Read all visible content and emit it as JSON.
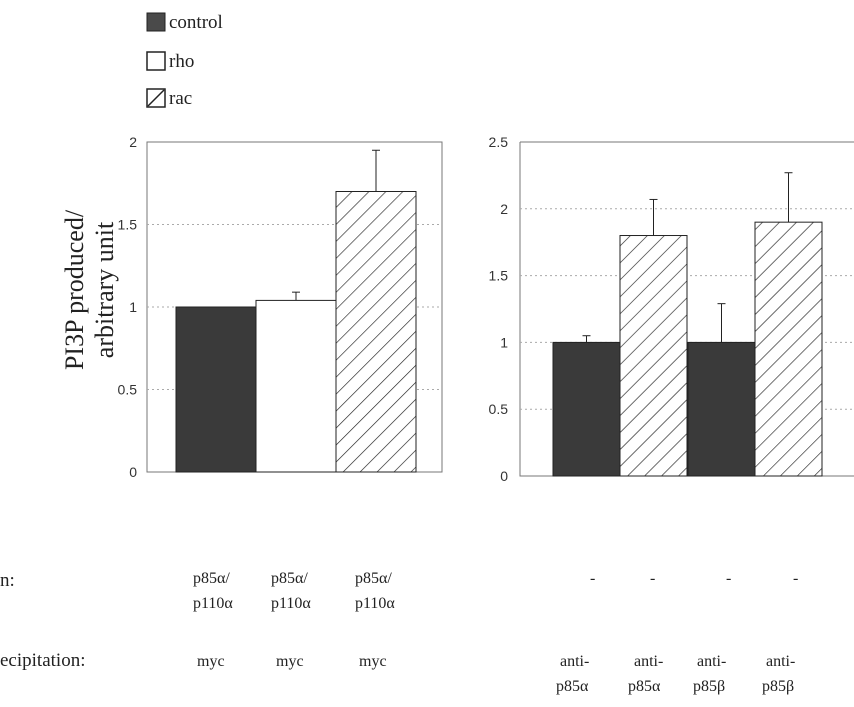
{
  "chart_data": [
    {
      "type": "bar",
      "ylabel_lines": [
        "PI3P produced/",
        "arbitrary unit"
      ],
      "ylim": [
        0,
        2
      ],
      "yticks": [
        "0",
        "0.5",
        "1",
        "1.5",
        "2"
      ],
      "grid": true,
      "legend_placement": "top-left",
      "legend": [
        {
          "name": "control",
          "pattern": "solid-dark"
        },
        {
          "name": "rho",
          "pattern": "white"
        },
        {
          "name": "rac",
          "pattern": "hatched"
        }
      ],
      "bars": [
        {
          "series": "control",
          "value": 1.0,
          "error": 0
        },
        {
          "series": "rho",
          "value": 1.04,
          "error": 0.05
        },
        {
          "series": "rac",
          "value": 1.7,
          "error": 0.25
        }
      ]
    },
    {
      "type": "bar",
      "ylim": [
        0,
        2.5
      ],
      "yticks": [
        "0",
        "0.5",
        "1",
        "1.5",
        "2",
        "2.5"
      ],
      "grid": true,
      "bars": [
        {
          "series": "control",
          "value": 1.0,
          "error": 0.05
        },
        {
          "series": "rac",
          "value": 1.8,
          "error": 0.27
        },
        {
          "series": "control",
          "value": 1.0,
          "error": 0.29
        },
        {
          "series": "rac",
          "value": 1.9,
          "error": 0.37
        }
      ]
    }
  ],
  "table": {
    "row1_label": "n:",
    "row2_label": "ecipitation:",
    "left_row1": [
      [
        "p85α/",
        "p110α"
      ],
      [
        "p85α/",
        "p110α"
      ],
      [
        "p85α/",
        "p110α"
      ]
    ],
    "left_row2": [
      "myc",
      "myc",
      "myc"
    ],
    "right_row1": [
      "-",
      "-",
      "-",
      "-"
    ],
    "right_row2": [
      [
        "anti-",
        "p85α"
      ],
      [
        "anti-",
        "p85α"
      ],
      [
        "anti-",
        "p85β"
      ],
      [
        "anti-",
        "p85β"
      ]
    ]
  },
  "colors": {
    "control": "#3a3a3a",
    "rho": "#ffffff",
    "rac_hatch": "#222222",
    "axis": "#777777",
    "grid": "#aaaaaa"
  }
}
